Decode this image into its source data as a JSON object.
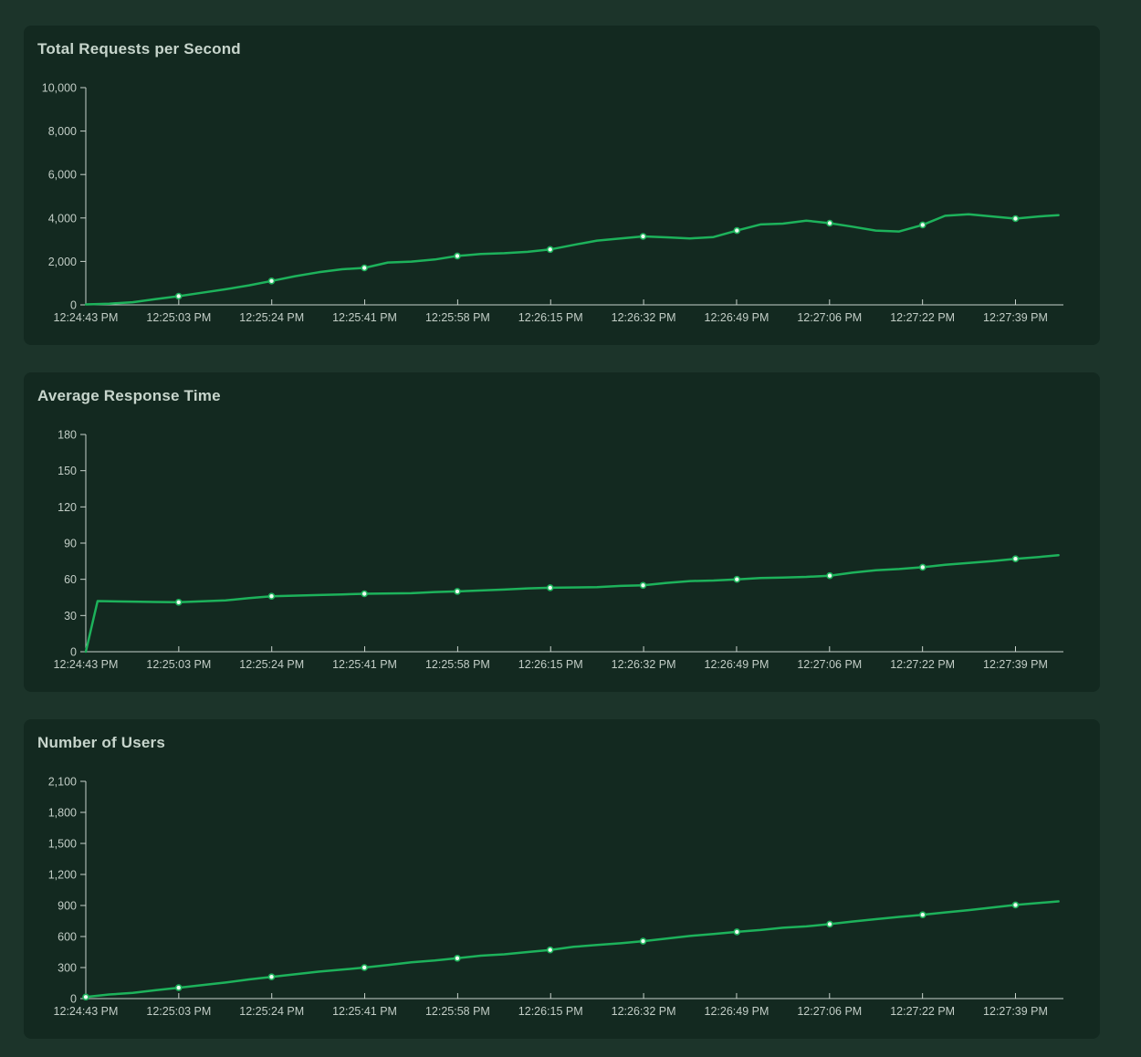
{
  "theme": {
    "page_bg": "#1c342a",
    "card_bg": "#132920",
    "title_color": "#c7d5cc",
    "label_color": "#c2cdc6",
    "axis_color": "#c7d1cb",
    "line_color": "#1db25b",
    "dot_fill": "#eefaf2"
  },
  "chart_data": [
    {
      "type": "line",
      "title": "Total Requests per Second",
      "xlabel": "",
      "ylabel": "",
      "ylim": [
        0,
        10000
      ],
      "y_tick_step": 2000,
      "y_tick_labels": [
        "0",
        "2,000",
        "4,000",
        "6,000",
        "8,000",
        "10,000"
      ],
      "x_tick_labels": [
        "12:24:43 PM",
        "12:25:03 PM",
        "12:25:24 PM",
        "12:25:41 PM",
        "12:25:58 PM",
        "12:26:15 PM",
        "12:26:32 PM",
        "12:26:49 PM",
        "12:27:06 PM",
        "12:27:22 PM",
        "12:27:39 PM"
      ],
      "legend": "none",
      "grid": false,
      "series": [
        {
          "name": "requests_per_second",
          "points": [
            [
              0.0,
              20
            ],
            [
              0.024,
              55
            ],
            [
              0.048,
              120
            ],
            [
              0.071,
              260
            ],
            [
              0.095,
              400
            ],
            [
              0.119,
              560
            ],
            [
              0.143,
              720
            ],
            [
              0.167,
              900
            ],
            [
              0.19,
              1100
            ],
            [
              0.214,
              1320
            ],
            [
              0.238,
              1500
            ],
            [
              0.262,
              1640
            ],
            [
              0.285,
              1700
            ],
            [
              0.309,
              1950
            ],
            [
              0.333,
              1990
            ],
            [
              0.357,
              2090
            ],
            [
              0.38,
              2250
            ],
            [
              0.404,
              2340
            ],
            [
              0.428,
              2380
            ],
            [
              0.452,
              2440
            ],
            [
              0.475,
              2550
            ],
            [
              0.499,
              2760
            ],
            [
              0.523,
              2960
            ],
            [
              0.547,
              3060
            ],
            [
              0.57,
              3150
            ],
            [
              0.594,
              3110
            ],
            [
              0.618,
              3060
            ],
            [
              0.642,
              3120
            ],
            [
              0.666,
              3420
            ],
            [
              0.69,
              3700
            ],
            [
              0.713,
              3740
            ],
            [
              0.737,
              3880
            ],
            [
              0.761,
              3760
            ],
            [
              0.784,
              3600
            ],
            [
              0.808,
              3420
            ],
            [
              0.832,
              3380
            ],
            [
              0.856,
              3680
            ],
            [
              0.879,
              4100
            ],
            [
              0.903,
              4170
            ],
            [
              0.927,
              4070
            ],
            [
              0.951,
              3970
            ],
            [
              0.975,
              4070
            ],
            [
              0.995,
              4130
            ]
          ]
        }
      ],
      "markers": [
        [
          0.095,
          400
        ],
        [
          0.19,
          1100
        ],
        [
          0.285,
          1700
        ],
        [
          0.38,
          2250
        ],
        [
          0.475,
          2550
        ],
        [
          0.57,
          3150
        ],
        [
          0.666,
          3420
        ],
        [
          0.761,
          3760
        ],
        [
          0.856,
          3680
        ],
        [
          0.951,
          3970
        ]
      ]
    },
    {
      "type": "line",
      "title": "Average Response Time",
      "xlabel": "",
      "ylabel": "",
      "ylim": [
        0,
        180
      ],
      "y_tick_step": 30,
      "y_tick_labels": [
        "0",
        "30",
        "60",
        "90",
        "120",
        "150",
        "180"
      ],
      "x_tick_labels": [
        "12:24:43 PM",
        "12:25:03 PM",
        "12:25:24 PM",
        "12:25:41 PM",
        "12:25:58 PM",
        "12:26:15 PM",
        "12:26:32 PM",
        "12:26:49 PM",
        "12:27:06 PM",
        "12:27:22 PM",
        "12:27:39 PM"
      ],
      "legend": "none",
      "grid": false,
      "series": [
        {
          "name": "avg_response_time_ms",
          "points": [
            [
              0.0,
              0
            ],
            [
              0.012,
              42
            ],
            [
              0.048,
              41.5
            ],
            [
              0.071,
              41.2
            ],
            [
              0.095,
              41
            ],
            [
              0.143,
              42.5
            ],
            [
              0.167,
              44.5
            ],
            [
              0.19,
              46
            ],
            [
              0.238,
              47
            ],
            [
              0.262,
              47.5
            ],
            [
              0.285,
              48
            ],
            [
              0.333,
              48.5
            ],
            [
              0.357,
              49.5
            ],
            [
              0.38,
              50
            ],
            [
              0.428,
              51.5
            ],
            [
              0.452,
              52.5
            ],
            [
              0.475,
              53
            ],
            [
              0.523,
              53.5
            ],
            [
              0.547,
              54.5
            ],
            [
              0.57,
              55
            ],
            [
              0.594,
              57
            ],
            [
              0.618,
              58.5
            ],
            [
              0.642,
              59
            ],
            [
              0.666,
              60
            ],
            [
              0.69,
              61
            ],
            [
              0.713,
              61.5
            ],
            [
              0.737,
              62
            ],
            [
              0.761,
              63
            ],
            [
              0.784,
              65.5
            ],
            [
              0.808,
              67.5
            ],
            [
              0.832,
              68.5
            ],
            [
              0.856,
              70
            ],
            [
              0.879,
              72
            ],
            [
              0.903,
              73.5
            ],
            [
              0.927,
              75
            ],
            [
              0.951,
              77
            ],
            [
              0.975,
              78.5
            ],
            [
              0.995,
              80
            ]
          ]
        }
      ],
      "markers": [
        [
          0.095,
          41
        ],
        [
          0.19,
          46
        ],
        [
          0.285,
          48
        ],
        [
          0.38,
          50
        ],
        [
          0.475,
          53
        ],
        [
          0.57,
          55
        ],
        [
          0.666,
          60
        ],
        [
          0.761,
          63
        ],
        [
          0.856,
          70
        ],
        [
          0.951,
          77
        ]
      ]
    },
    {
      "type": "line",
      "title": "Number of Users",
      "xlabel": "",
      "ylabel": "",
      "ylim": [
        0,
        2100
      ],
      "y_tick_step": 300,
      "y_tick_labels": [
        "0",
        "300",
        "600",
        "900",
        "1,200",
        "1,500",
        "1,800",
        "2,100"
      ],
      "x_tick_labels": [
        "12:24:43 PM",
        "12:25:03 PM",
        "12:25:24 PM",
        "12:25:41 PM",
        "12:25:58 PM",
        "12:26:15 PM",
        "12:26:32 PM",
        "12:26:49 PM",
        "12:27:06 PM",
        "12:27:22 PM",
        "12:27:39 PM"
      ],
      "legend": "none",
      "grid": false,
      "series": [
        {
          "name": "user_count",
          "points": [
            [
              0.0,
              15
            ],
            [
              0.024,
              40
            ],
            [
              0.048,
              55
            ],
            [
              0.071,
              80
            ],
            [
              0.095,
              105
            ],
            [
              0.119,
              130
            ],
            [
              0.143,
              155
            ],
            [
              0.167,
              185
            ],
            [
              0.19,
              210
            ],
            [
              0.214,
              235
            ],
            [
              0.238,
              260
            ],
            [
              0.262,
              280
            ],
            [
              0.285,
              300
            ],
            [
              0.309,
              325
            ],
            [
              0.333,
              350
            ],
            [
              0.357,
              368
            ],
            [
              0.38,
              390
            ],
            [
              0.404,
              415
            ],
            [
              0.428,
              428
            ],
            [
              0.452,
              450
            ],
            [
              0.475,
              470
            ],
            [
              0.499,
              500
            ],
            [
              0.523,
              518
            ],
            [
              0.547,
              535
            ],
            [
              0.57,
              555
            ],
            [
              0.594,
              580
            ],
            [
              0.618,
              605
            ],
            [
              0.642,
              625
            ],
            [
              0.666,
              645
            ],
            [
              0.69,
              663
            ],
            [
              0.713,
              685
            ],
            [
              0.737,
              698
            ],
            [
              0.761,
              720
            ],
            [
              0.784,
              745
            ],
            [
              0.808,
              768
            ],
            [
              0.832,
              790
            ],
            [
              0.856,
              810
            ],
            [
              0.879,
              833
            ],
            [
              0.903,
              855
            ],
            [
              0.927,
              880
            ],
            [
              0.951,
              905
            ],
            [
              0.975,
              925
            ],
            [
              0.995,
              940
            ]
          ]
        }
      ],
      "markers": [
        [
          0.0,
          15
        ],
        [
          0.095,
          105
        ],
        [
          0.19,
          210
        ],
        [
          0.285,
          300
        ],
        [
          0.38,
          390
        ],
        [
          0.475,
          470
        ],
        [
          0.57,
          555
        ],
        [
          0.666,
          645
        ],
        [
          0.761,
          720
        ],
        [
          0.856,
          810
        ],
        [
          0.951,
          905
        ]
      ]
    }
  ]
}
